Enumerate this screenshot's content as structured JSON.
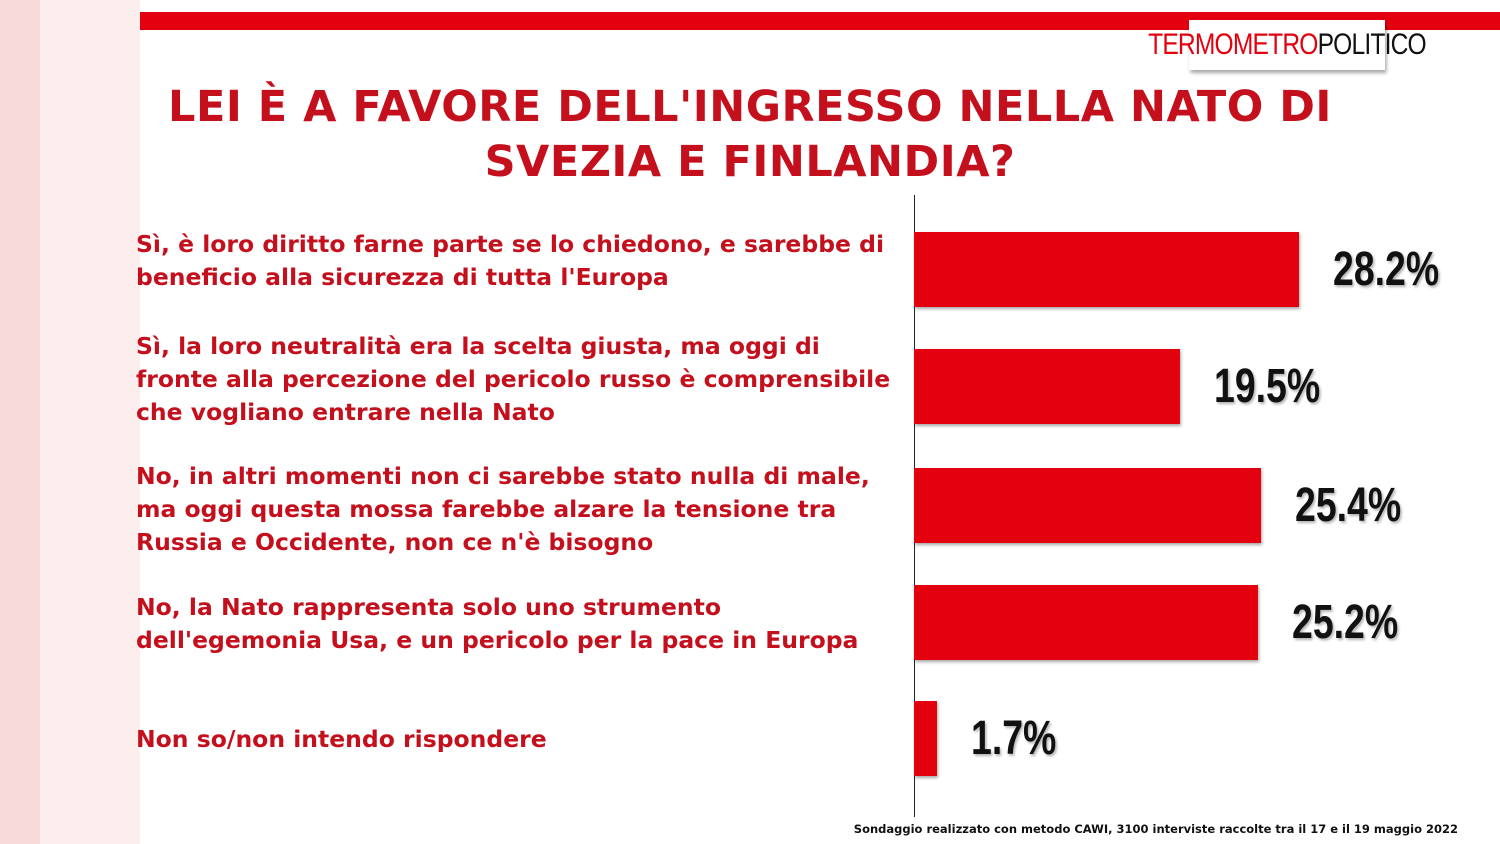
{
  "brand": {
    "logo_part1": "TERMOMETRO",
    "logo_part2": "POLITICO",
    "red": "#e3000f",
    "title_red": "#c4101d"
  },
  "title": "LEI È A FAVORE DELL'INGRESSO NELLA NATO DI SVEZIA E FINLANDIA?",
  "footnote": "Sondaggio realizzato con metodo CAWI, 3100 interviste raccolte tra il 17 e il 19 maggio 2022",
  "chart_data": {
    "type": "bar",
    "orientation": "horizontal",
    "title": "LEI È A FAVORE DELL'INGRESSO NELLA NATO DI SVEZIA E FINLANDIA?",
    "categories": [
      "Sì, è loro diritto farne parte se lo chiedono, e sarebbe di beneficio alla sicurezza di tutta l'Europa",
      "Sì, la loro neutralità  era la scelta giusta, ma oggi di fronte alla percezione del pericolo russo è comprensibile che vogliano entrare nella Nato",
      "No, in altri momenti non ci sarebbe stato nulla di male, ma oggi questa mossa farebbe alzare la tensione tra Russia e Occidente, non ce n'è bisogno",
      "No, la Nato rappresenta solo uno strumento dell'egemonia Usa, e un pericolo per la pace in Europa",
      "Non so/non intendo rispondere"
    ],
    "values": [
      28.2,
      19.5,
      25.4,
      25.2,
      1.7
    ],
    "value_labels": [
      "28.2%",
      "19.5%",
      "25.4%",
      "25.2%",
      "1.7%"
    ],
    "unit": "%",
    "xlim": [
      0,
      40
    ],
    "grid": false,
    "bar_color": "#e3000f"
  }
}
